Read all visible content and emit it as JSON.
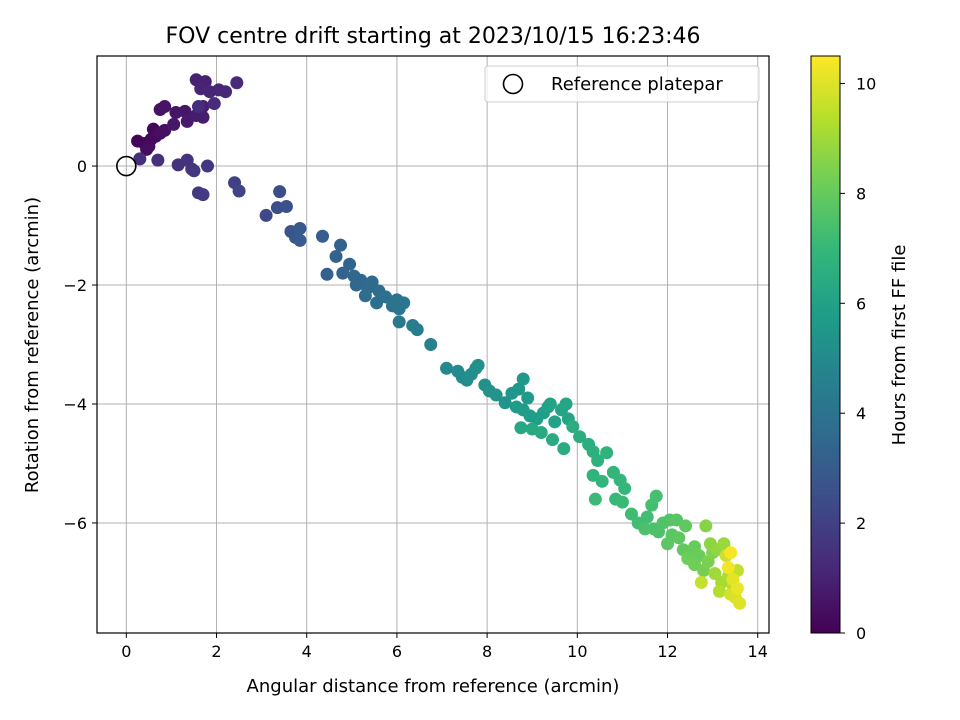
{
  "chart_data": {
    "type": "scatter",
    "title": "FOV centre drift starting at 2023/10/15 16:23:46",
    "xlabel": "Angular distance from reference (arcmin)",
    "ylabel": "Rotation from reference (arcmin)",
    "xlim": [
      -0.65,
      14.25
    ],
    "ylim": [
      -7.85,
      1.85
    ],
    "xticks": [
      0,
      2,
      4,
      6,
      8,
      10,
      12,
      14
    ],
    "yticks": [
      -6,
      -4,
      -2,
      0
    ],
    "tick_labels": {
      "x": [
        "0",
        "2",
        "4",
        "6",
        "8",
        "10",
        "12",
        "14"
      ],
      "y": [
        "−6",
        "−4",
        "−2",
        "0"
      ]
    },
    "grid": true,
    "legend": {
      "position": "top-right",
      "entries": [
        "Reference platepar"
      ]
    },
    "reference_point": {
      "x": 0,
      "y": 0,
      "marker": "open-circle"
    },
    "colorbar": {
      "label": "Hours from first FF file",
      "colormap": "viridis",
      "range": [
        0,
        10.5
      ],
      "ticks": [
        0,
        2,
        4,
        6,
        8,
        10
      ],
      "tick_labels": [
        "0",
        "2",
        "4",
        "6",
        "8",
        "10"
      ]
    },
    "series": [
      {
        "values": [
          [
            0.25,
            0.42,
            0.1
          ],
          [
            0.4,
            0.38,
            0.15
          ],
          [
            0.55,
            0.45,
            0.2
          ],
          [
            0.6,
            0.62,
            0.25
          ],
          [
            0.65,
            0.5,
            0.3
          ],
          [
            0.5,
            0.33,
            0.35
          ],
          [
            0.45,
            0.28,
            0.38
          ],
          [
            0.75,
            0.55,
            0.4
          ],
          [
            0.85,
            0.6,
            0.45
          ],
          [
            0.75,
            0.95,
            0.5
          ],
          [
            0.85,
            1.0,
            0.55
          ],
          [
            1.1,
            0.9,
            0.6
          ],
          [
            1.3,
            0.92,
            0.65
          ],
          [
            1.05,
            0.7,
            0.7
          ],
          [
            1.35,
            0.75,
            0.75
          ],
          [
            1.55,
            0.85,
            0.8
          ],
          [
            1.7,
            0.82,
            0.85
          ],
          [
            1.7,
            1.0,
            0.9
          ],
          [
            1.55,
            1.45,
            0.95
          ],
          [
            1.75,
            1.42,
            1.0
          ],
          [
            1.65,
            1.3,
            1.05
          ],
          [
            1.85,
            1.25,
            1.1
          ],
          [
            2.05,
            1.28,
            1.15
          ],
          [
            2.2,
            1.25,
            1.2
          ],
          [
            2.45,
            1.4,
            1.25
          ],
          [
            1.95,
            1.05,
            1.3
          ],
          [
            1.6,
            1.0,
            1.35
          ],
          [
            0.7,
            0.1,
            1.4
          ],
          [
            0.3,
            0.12,
            1.45
          ],
          [
            1.15,
            0.02,
            1.5
          ],
          [
            1.35,
            0.1,
            1.55
          ],
          [
            1.45,
            -0.05,
            1.6
          ],
          [
            1.5,
            -0.08,
            1.65
          ],
          [
            1.8,
            0.0,
            1.7
          ],
          [
            1.6,
            -0.45,
            1.75
          ],
          [
            1.7,
            -0.48,
            1.8
          ],
          [
            2.4,
            -0.28,
            2.0
          ],
          [
            2.5,
            -0.42,
            2.1
          ],
          [
            3.1,
            -0.83,
            2.3
          ],
          [
            3.35,
            -0.7,
            2.45
          ],
          [
            3.4,
            -0.43,
            2.5
          ],
          [
            3.55,
            -0.68,
            2.6
          ],
          [
            3.65,
            -1.1,
            2.75
          ],
          [
            3.75,
            -1.2,
            2.85
          ],
          [
            3.85,
            -1.05,
            2.9
          ],
          [
            3.85,
            -1.25,
            3.0
          ],
          [
            4.35,
            -1.18,
            3.1
          ],
          [
            4.45,
            -1.82,
            3.2
          ],
          [
            4.65,
            -1.52,
            3.25
          ],
          [
            4.75,
            -1.33,
            3.3
          ],
          [
            4.8,
            -1.8,
            3.35
          ],
          [
            4.95,
            -1.65,
            3.4
          ],
          [
            5.05,
            -1.85,
            3.45
          ],
          [
            5.2,
            -1.92,
            3.5
          ],
          [
            5.1,
            -2.0,
            3.55
          ],
          [
            5.35,
            -2.05,
            3.6
          ],
          [
            5.45,
            -1.95,
            3.65
          ],
          [
            5.6,
            -2.1,
            3.7
          ],
          [
            5.3,
            -2.18,
            3.75
          ],
          [
            5.55,
            -2.3,
            3.8
          ],
          [
            5.75,
            -2.2,
            3.9
          ],
          [
            5.9,
            -2.35,
            4.0
          ],
          [
            6.0,
            -2.25,
            4.05
          ],
          [
            6.05,
            -2.4,
            4.1
          ],
          [
            6.15,
            -2.3,
            4.15
          ],
          [
            6.05,
            -2.62,
            4.25
          ],
          [
            6.35,
            -2.68,
            4.35
          ],
          [
            6.45,
            -2.75,
            4.4
          ],
          [
            6.75,
            -3.0,
            4.6
          ],
          [
            7.1,
            -3.4,
            4.9
          ],
          [
            7.35,
            -3.45,
            5.0
          ],
          [
            7.45,
            -3.55,
            5.05
          ],
          [
            7.55,
            -3.6,
            5.1
          ],
          [
            7.65,
            -3.5,
            5.15
          ],
          [
            7.75,
            -3.4,
            5.2
          ],
          [
            7.8,
            -3.35,
            5.25
          ],
          [
            7.95,
            -3.68,
            5.3
          ],
          [
            8.05,
            -3.78,
            5.35
          ],
          [
            8.2,
            -3.85,
            5.4
          ],
          [
            8.4,
            -3.98,
            5.45
          ],
          [
            8.55,
            -3.82,
            5.5
          ],
          [
            8.7,
            -3.75,
            5.55
          ],
          [
            8.8,
            -3.58,
            5.6
          ],
          [
            8.9,
            -3.9,
            5.65
          ],
          [
            8.65,
            -4.05,
            5.7
          ],
          [
            8.8,
            -4.1,
            5.75
          ],
          [
            8.95,
            -4.2,
            5.8
          ],
          [
            9.1,
            -4.25,
            5.85
          ],
          [
            9.25,
            -4.15,
            5.9
          ],
          [
            9.35,
            -4.05,
            5.95
          ],
          [
            9.5,
            -4.3,
            6.0
          ],
          [
            9.4,
            -4.0,
            6.05
          ],
          [
            9.65,
            -4.1,
            6.1
          ],
          [
            9.8,
            -4.25,
            6.15
          ],
          [
            9.75,
            -4.0,
            6.2
          ],
          [
            8.75,
            -4.4,
            6.25
          ],
          [
            9.0,
            -4.42,
            6.3
          ],
          [
            9.2,
            -4.48,
            6.35
          ],
          [
            9.45,
            -4.6,
            6.4
          ],
          [
            9.7,
            -4.75,
            6.45
          ],
          [
            9.9,
            -4.38,
            6.5
          ],
          [
            10.05,
            -4.55,
            6.55
          ],
          [
            10.25,
            -4.68,
            6.6
          ],
          [
            10.35,
            -4.8,
            6.65
          ],
          [
            10.45,
            -4.95,
            6.7
          ],
          [
            10.65,
            -4.82,
            6.75
          ],
          [
            10.35,
            -5.2,
            6.8
          ],
          [
            10.55,
            -5.3,
            6.85
          ],
          [
            10.8,
            -5.15,
            6.9
          ],
          [
            10.95,
            -5.28,
            6.95
          ],
          [
            11.05,
            -5.42,
            7.0
          ],
          [
            10.85,
            -5.6,
            7.05
          ],
          [
            11.0,
            -5.65,
            7.1
          ],
          [
            10.4,
            -5.6,
            7.15
          ],
          [
            11.2,
            -5.85,
            7.2
          ],
          [
            11.35,
            -6.0,
            7.25
          ],
          [
            11.55,
            -5.9,
            7.3
          ],
          [
            11.65,
            -5.7,
            7.35
          ],
          [
            11.75,
            -5.55,
            7.4
          ],
          [
            11.5,
            -6.1,
            7.45
          ],
          [
            11.7,
            -6.1,
            7.5
          ],
          [
            11.8,
            -6.15,
            7.55
          ],
          [
            11.9,
            -6.0,
            7.6
          ],
          [
            12.05,
            -5.95,
            7.65
          ],
          [
            12.2,
            -5.95,
            7.7
          ],
          [
            12.1,
            -6.2,
            7.75
          ],
          [
            12.0,
            -6.35,
            7.8
          ],
          [
            12.25,
            -6.25,
            7.85
          ],
          [
            12.4,
            -6.05,
            7.9
          ],
          [
            12.35,
            -6.45,
            7.95
          ],
          [
            12.5,
            -6.5,
            8.0
          ],
          [
            12.6,
            -6.4,
            8.05
          ],
          [
            12.7,
            -6.55,
            8.1
          ],
          [
            12.45,
            -6.6,
            8.15
          ],
          [
            12.6,
            -6.7,
            8.2
          ],
          [
            12.8,
            -6.8,
            8.3
          ],
          [
            12.9,
            -6.65,
            8.4
          ],
          [
            13.0,
            -6.5,
            8.5
          ],
          [
            12.85,
            -6.05,
            8.6
          ],
          [
            12.95,
            -6.35,
            8.7
          ],
          [
            13.1,
            -6.45,
            8.8
          ],
          [
            13.25,
            -6.35,
            8.9
          ],
          [
            13.05,
            -6.85,
            9.0
          ],
          [
            13.2,
            -7.0,
            9.1
          ],
          [
            13.35,
            -6.9,
            9.2
          ],
          [
            13.15,
            -7.15,
            9.3
          ],
          [
            13.45,
            -7.05,
            9.4
          ],
          [
            13.55,
            -6.8,
            9.5
          ],
          [
            12.75,
            -7.0,
            9.6
          ],
          [
            13.3,
            -6.55,
            9.7
          ],
          [
            13.4,
            -7.2,
            9.8
          ],
          [
            13.5,
            -7.25,
            9.9
          ],
          [
            13.6,
            -7.35,
            10.0
          ],
          [
            13.45,
            -6.95,
            10.1
          ],
          [
            13.55,
            -7.1,
            10.2
          ],
          [
            13.35,
            -6.75,
            10.3
          ],
          [
            13.4,
            -6.5,
            10.4
          ]
        ]
      }
    ]
  }
}
